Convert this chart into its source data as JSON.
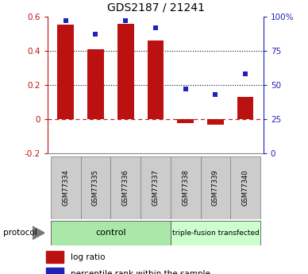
{
  "title": "GDS2187 / 21241",
  "samples": [
    "GSM77334",
    "GSM77335",
    "GSM77336",
    "GSM77337",
    "GSM77338",
    "GSM77339",
    "GSM77340"
  ],
  "log_ratio": [
    0.55,
    0.41,
    0.555,
    0.46,
    -0.022,
    -0.032,
    0.13
  ],
  "percentile_rank": [
    97,
    87,
    97,
    92,
    47,
    43,
    58
  ],
  "bar_color": "#bb1111",
  "scatter_color": "#2222bb",
  "ylim_left": [
    -0.2,
    0.6
  ],
  "ylim_right": [
    0,
    100
  ],
  "yticks_left": [
    -0.2,
    0.0,
    0.2,
    0.4,
    0.6
  ],
  "yticks_right": [
    0,
    25,
    50,
    75,
    100
  ],
  "yticklabels_right": [
    "0",
    "25",
    "50",
    "75",
    "100%"
  ],
  "hline_zero_color": "#cc2222",
  "hline_dotted_color": "#111111",
  "control_samples": 4,
  "control_label": "control",
  "treatment_label": "triple-fusion transfected",
  "control_color": "#aae8aa",
  "treatment_color": "#ccffcc",
  "sample_box_color": "#cccccc",
  "legend_red_label": "log ratio",
  "legend_blue_label": "percentile rank within the sample",
  "protocol_label": "protocol",
  "bar_width": 0.55,
  "figsize": [
    3.88,
    3.45
  ],
  "dpi": 100
}
